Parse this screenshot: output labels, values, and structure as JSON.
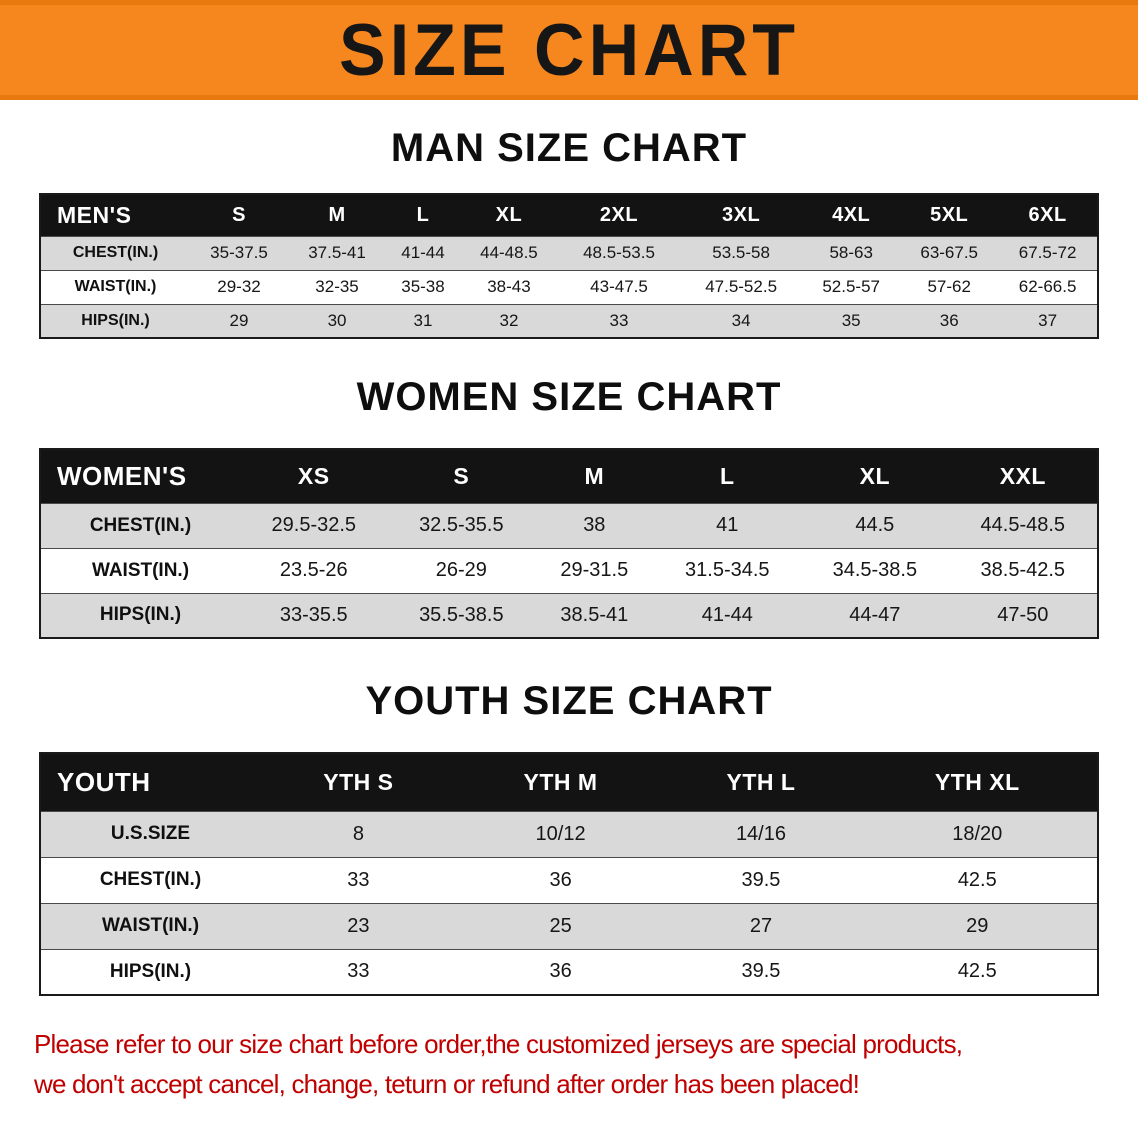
{
  "banner": {
    "title": "SIZE CHART"
  },
  "colors": {
    "banner_bg": "#f6871f",
    "banner_text": "#161616",
    "table_header_bg": "#131313",
    "table_header_text": "#ffffff",
    "row_shaded_bg": "#d9d9d9",
    "table_border": "#1a1a1a",
    "disclaimer_text": "#c00000"
  },
  "chart_data": [
    {
      "type": "table",
      "title": "MAN SIZE CHART",
      "header_label": "MEN'S",
      "columns": [
        "S",
        "M",
        "L",
        "XL",
        "2XL",
        "3XL",
        "4XL",
        "5XL",
        "6XL"
      ],
      "rows": [
        {
          "label": "CHEST(IN.)",
          "values": [
            "35-37.5",
            "37.5-41",
            "41-44",
            "44-48.5",
            "48.5-53.5",
            "53.5-58",
            "58-63",
            "63-67.5",
            "67.5-72"
          ]
        },
        {
          "label": "WAIST(IN.)",
          "values": [
            "29-32",
            "32-35",
            "35-38",
            "38-43",
            "43-47.5",
            "47.5-52.5",
            "52.5-57",
            "57-62",
            "62-66.5"
          ]
        },
        {
          "label": "HIPS(IN.)",
          "values": [
            "29",
            "30",
            "31",
            "32",
            "33",
            "34",
            "35",
            "36",
            "37"
          ]
        }
      ]
    },
    {
      "type": "table",
      "title": "WOMEN SIZE CHART",
      "header_label": "WOMEN'S",
      "columns": [
        "XS",
        "S",
        "M",
        "L",
        "XL",
        "XXL"
      ],
      "rows": [
        {
          "label": "CHEST(IN.)",
          "values": [
            "29.5-32.5",
            "32.5-35.5",
            "38",
            "41",
            "44.5",
            "44.5-48.5"
          ]
        },
        {
          "label": "WAIST(IN.)",
          "values": [
            "23.5-26",
            "26-29",
            "29-31.5",
            "31.5-34.5",
            "34.5-38.5",
            "38.5-42.5"
          ]
        },
        {
          "label": "HIPS(IN.)",
          "values": [
            "33-35.5",
            "35.5-38.5",
            "38.5-41",
            "41-44",
            "44-47",
            "47-50"
          ]
        }
      ]
    },
    {
      "type": "table",
      "title": "YOUTH SIZE CHART",
      "header_label": "YOUTH",
      "columns": [
        "YTH S",
        "YTH M",
        "YTH L",
        "YTH XL"
      ],
      "rows": [
        {
          "label": "U.S.SIZE",
          "values": [
            "8",
            "10/12",
            "14/16",
            "18/20"
          ]
        },
        {
          "label": "CHEST(IN.)",
          "values": [
            "33",
            "36",
            "39.5",
            "42.5"
          ]
        },
        {
          "label": "WAIST(IN.)",
          "values": [
            "23",
            "25",
            "27",
            "29"
          ]
        },
        {
          "label": "HIPS(IN.)",
          "values": [
            "33",
            "36",
            "39.5",
            "42.5"
          ]
        }
      ]
    }
  ],
  "disclaimer": {
    "lines": [
      "Please refer to our size chart before order,the customized jerseys are special products,",
      "we don't accept cancel, change, teturn or refund after order has been placed!"
    ]
  }
}
